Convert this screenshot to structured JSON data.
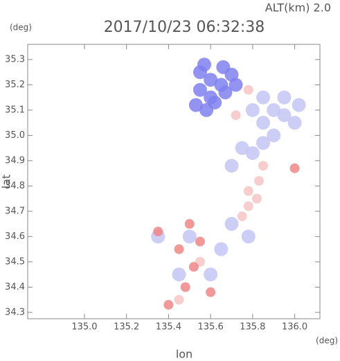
{
  "chart_data": {
    "type": "scatter",
    "title": "2017/10/23 06:32:38",
    "subtitle": "ALT(km)  2.0",
    "y_unit": "(deg)",
    "x_unit": "(deg)",
    "xlabel": "lon",
    "ylabel": "lat",
    "xlim": [
      134.73,
      136.12
    ],
    "ylim": [
      34.275,
      35.36
    ],
    "xticks": [
      {
        "value": 135,
        "label": "135.0"
      },
      135.2,
      135.4,
      135.6,
      135.8,
      {
        "value": 136,
        "label": "136.0"
      }
    ],
    "yticks": [
      34.3,
      34.4,
      34.5,
      34.6,
      34.7,
      34.8,
      34.9,
      {
        "value": 35,
        "label": "35.0"
      },
      35.1,
      35.2,
      35.3
    ],
    "series": [
      {
        "color": "#8080ee",
        "x": [
          135.55,
          135.6,
          135.65,
          135.55,
          135.6,
          135.53,
          135.58,
          135.62,
          135.67,
          135.7,
          135.57,
          135.66,
          135.72
        ],
        "values": [
          35.25,
          35.22,
          35.2,
          35.18,
          35.15,
          35.12,
          35.1,
          35.13,
          35.17,
          35.24,
          35.28,
          35.27,
          35.2
        ]
      },
      {
        "color": "#c4c6f4",
        "x": [
          135.8,
          135.85,
          135.9,
          135.95,
          136.0,
          135.9,
          135.85,
          135.8,
          135.75,
          135.95,
          135.85,
          136.02,
          135.7,
          135.78,
          135.7,
          135.65,
          135.6,
          135.5,
          135.45,
          135.35
        ],
        "values": [
          35.1,
          35.05,
          35.1,
          35.08,
          35.05,
          35.0,
          34.97,
          34.93,
          34.95,
          35.15,
          35.15,
          35.12,
          34.88,
          34.6,
          34.65,
          34.55,
          34.45,
          34.6,
          34.45,
          34.6
        ]
      },
      {
        "color": "#f6c4c4",
        "x": [
          135.78,
          135.82,
          135.78,
          135.83,
          135.75,
          135.78,
          135.72,
          135.85,
          135.55,
          135.45
        ],
        "values": [
          34.78,
          34.75,
          34.72,
          34.82,
          34.68,
          35.18,
          35.08,
          34.88,
          34.5,
          34.35
        ]
      },
      {
        "color": "#ef8686",
        "x": [
          135.5,
          135.55,
          135.45,
          135.52,
          135.4,
          135.48,
          135.6,
          135.35,
          136.0
        ],
        "values": [
          34.65,
          34.58,
          34.55,
          34.48,
          34.33,
          34.4,
          34.38,
          34.62,
          34.87
        ]
      }
    ]
  }
}
